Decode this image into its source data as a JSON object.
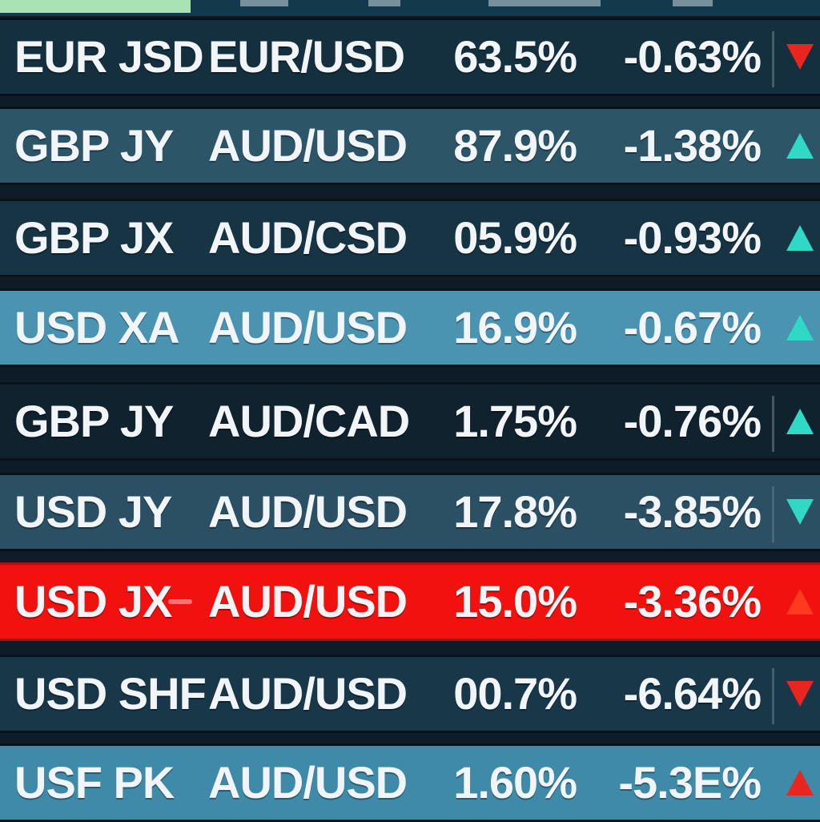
{
  "colors": {
    "up_arrow": "#2fd9c5",
    "down_arrow": "#e8251f",
    "highlight_row": "#f1120f",
    "dark_row": "#0f222d"
  },
  "rows": [
    {
      "symbol": "EUR JSD",
      "pair": "EUR/USD",
      "percent": "63.5%",
      "change": "-0.63%",
      "direction": "down",
      "arrow_color": "#e8251f",
      "bg": "#14303e"
    },
    {
      "symbol": "GBP JY",
      "pair": "AUD/USD",
      "percent": "87.9%",
      "change": "-1.38%",
      "direction": "up",
      "arrow_color": "#2fd9c5",
      "bg": "#2c5568"
    },
    {
      "symbol": "GBP JX",
      "pair": "AUD/CSD",
      "percent": "05.9%",
      "change": "-0.93%",
      "direction": "up",
      "arrow_color": "#2fd9c5",
      "bg": "#163443"
    },
    {
      "symbol": "USD XA",
      "pair": "AUD/USD",
      "percent": "16.9%",
      "change": "-0.67%",
      "direction": "up",
      "arrow_color": "#2fd9c5",
      "bg": "#4a93b1"
    },
    {
      "symbol": "GBP JY",
      "pair": "AUD/CAD",
      "percent": "1.75%",
      "change": "-0.76%",
      "direction": "up",
      "arrow_color": "#2fd9c5",
      "bg": "#0f222d"
    },
    {
      "symbol": "USD JY",
      "pair": "AUD/USD",
      "percent": "17.8%",
      "change": "-3.85%",
      "direction": "down",
      "arrow_color": "#2fd9c5",
      "bg": "#2b5064"
    },
    {
      "symbol": "USD JX",
      "pair": "AUD/USD",
      "percent": "15.0%",
      "change": "-3.36%",
      "direction": "up",
      "arrow_color": "#ff3a1f",
      "bg": "#f1120f"
    },
    {
      "symbol": "USD SHF",
      "pair": "AUD/USD",
      "percent": "00.7%",
      "change": "-6.64%",
      "direction": "down",
      "arrow_color": "#e8251f",
      "bg": "#18384a"
    },
    {
      "symbol": "USF PK",
      "pair": "AUD/USD",
      "percent": "1.60%",
      "change": "-5.3E%",
      "direction": "up",
      "arrow_color": "#e8251f",
      "bg": "#3f8aa8"
    }
  ]
}
